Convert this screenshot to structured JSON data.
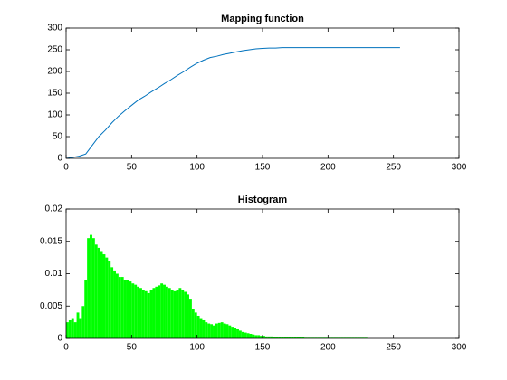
{
  "chart_data": [
    {
      "type": "line",
      "title": "Mapping function",
      "color": "#0072bd",
      "x": [
        0,
        5,
        10,
        15,
        20,
        25,
        30,
        35,
        40,
        45,
        50,
        55,
        60,
        65,
        70,
        75,
        80,
        85,
        90,
        95,
        100,
        105,
        110,
        115,
        120,
        125,
        130,
        135,
        140,
        145,
        150,
        155,
        160,
        165,
        170,
        175,
        180,
        185,
        190,
        195,
        200,
        205,
        210,
        215,
        220,
        225,
        230,
        235,
        240,
        245,
        250,
        255
      ],
      "values": [
        0,
        2,
        5,
        10,
        30,
        50,
        65,
        82,
        97,
        110,
        122,
        134,
        143,
        153,
        162,
        172,
        181,
        191,
        200,
        210,
        219,
        226,
        232,
        235,
        239,
        242,
        245,
        248,
        250,
        252,
        253,
        254,
        254,
        255,
        255,
        255,
        255,
        255,
        255,
        255,
        255,
        255,
        255,
        255,
        255,
        255,
        255,
        255,
        255,
        255,
        255,
        255
      ],
      "xlim": [
        0,
        300
      ],
      "xticks": [
        0,
        50,
        100,
        150,
        200,
        250,
        300
      ],
      "ylim": [
        0,
        300
      ],
      "yticks": [
        0,
        50,
        100,
        150,
        200,
        250,
        300
      ]
    },
    {
      "type": "histogram",
      "title": "Histogram",
      "color": "#00ff00",
      "bins": [
        0,
        2,
        4,
        6,
        8,
        10,
        12,
        14,
        16,
        18,
        20,
        22,
        24,
        26,
        28,
        30,
        32,
        34,
        36,
        38,
        40,
        42,
        44,
        46,
        48,
        50,
        52,
        54,
        56,
        58,
        60,
        62,
        64,
        66,
        68,
        70,
        72,
        74,
        76,
        78,
        80,
        82,
        84,
        86,
        88,
        90,
        92,
        94,
        96,
        98,
        100,
        102,
        104,
        106,
        108,
        110,
        112,
        114,
        116,
        118,
        120,
        122,
        124,
        126,
        128,
        130,
        132,
        134,
        136,
        138,
        140,
        142,
        144,
        146,
        148,
        150,
        152,
        154,
        156,
        158,
        160,
        162,
        164,
        166,
        168,
        170,
        172,
        174,
        176,
        178,
        180,
        182,
        184,
        186,
        188,
        190,
        192,
        194,
        196,
        198,
        200,
        202,
        204,
        206,
        208,
        210,
        212,
        214,
        216,
        218,
        220,
        222,
        224,
        226,
        228,
        230,
        232,
        234,
        236,
        238,
        240,
        242,
        244,
        246,
        248,
        250,
        252,
        254,
        256
      ],
      "values": [
        0.0025,
        0.0028,
        0.003,
        0.0025,
        0.004,
        0.003,
        0.005,
        0.009,
        0.0155,
        0.016,
        0.0155,
        0.0145,
        0.014,
        0.0135,
        0.013,
        0.0125,
        0.012,
        0.011,
        0.0105,
        0.01,
        0.0095,
        0.0095,
        0.009,
        0.009,
        0.0088,
        0.0085,
        0.0083,
        0.008,
        0.0078,
        0.0075,
        0.0073,
        0.007,
        0.0075,
        0.0078,
        0.008,
        0.0082,
        0.0085,
        0.0083,
        0.008,
        0.0078,
        0.0075,
        0.0073,
        0.0075,
        0.0078,
        0.0075,
        0.0072,
        0.0068,
        0.006,
        0.0045,
        0.004,
        0.0035,
        0.003,
        0.0028,
        0.0025,
        0.0023,
        0.0022,
        0.002,
        0.0023,
        0.0024,
        0.0025,
        0.0023,
        0.0022,
        0.002,
        0.0018,
        0.0016,
        0.0014,
        0.0012,
        0.001,
        0.0009,
        0.0008,
        0.0007,
        0.0006,
        0.0005,
        0.0005,
        0.0004,
        0.0004,
        0.0003,
        0.0003,
        0.0003,
        0.0002,
        0.0002,
        0.0002,
        0.0002,
        0.0002,
        0.0002,
        0.0002,
        0.0002,
        0.0002,
        0.0002,
        0.0002,
        0.0002,
        0.0001,
        0.0001,
        0.0001,
        0.0001,
        0.0001,
        0.0001,
        0.0001,
        0.0001,
        0.0001,
        0.0001,
        0.0001,
        0.0001,
        0.0001,
        0.0001,
        0.0001,
        0.0001,
        0.0001,
        0.0001,
        0.0001,
        0.0001,
        0.0001,
        0.0001,
        0.0001,
        0.0001,
        0,
        0,
        0,
        0,
        0,
        0,
        0,
        0,
        0,
        0,
        0,
        0,
        0
      ],
      "xlim": [
        0,
        300
      ],
      "xticks": [
        0,
        50,
        100,
        150,
        200,
        250,
        300
      ],
      "ylim": [
        0,
        0.02
      ],
      "yticks": [
        0,
        0.005,
        0.01,
        0.015,
        0.02
      ]
    }
  ]
}
